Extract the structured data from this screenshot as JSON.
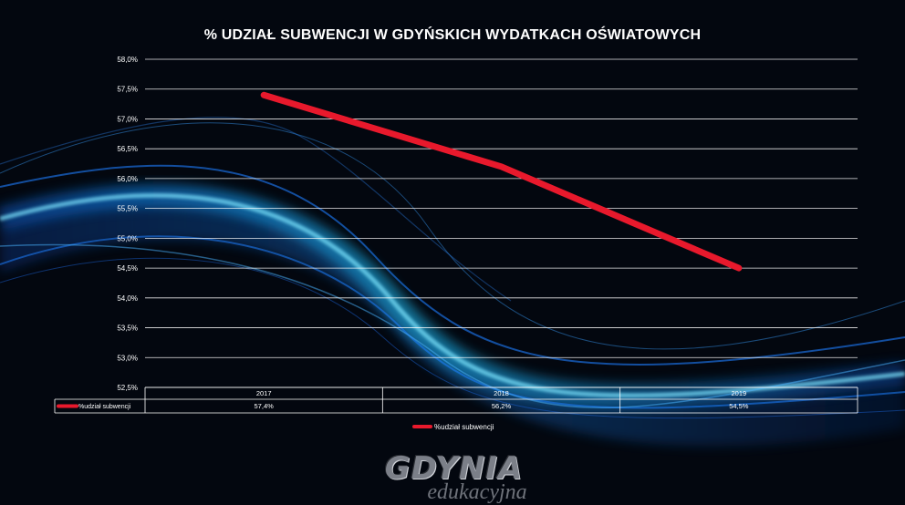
{
  "chart_data": {
    "type": "line",
    "title": "% UDZIAŁ SUBWENCJI W GDYŃSKICH WYDATKACH OŚWIATOWYCH",
    "categories": [
      "2017",
      "2018",
      "2019"
    ],
    "series": [
      {
        "name": "%udział subwencji",
        "values": [
          57.4,
          56.2,
          54.5
        ],
        "labels": [
          "57,4%",
          "56,2%",
          "54,5%"
        ],
        "color": "#e8192c"
      }
    ],
    "ylim": [
      52.5,
      58.0
    ],
    "y_ticks": [
      "52,5%",
      "53,0%",
      "53,5%",
      "54,0%",
      "54,5%",
      "55,0%",
      "55,5%",
      "56,0%",
      "56,5%",
      "57,0%",
      "57,5%",
      "58,0%"
    ],
    "grid": true,
    "data_table": true,
    "legend_position": "bottom"
  },
  "logo": {
    "main": "GDYNIA",
    "sub": "edukacyjna"
  },
  "colors": {
    "background": "#03070f",
    "grid": "#ffffff",
    "series": "#e8192c",
    "wave": "#1e8fff"
  }
}
